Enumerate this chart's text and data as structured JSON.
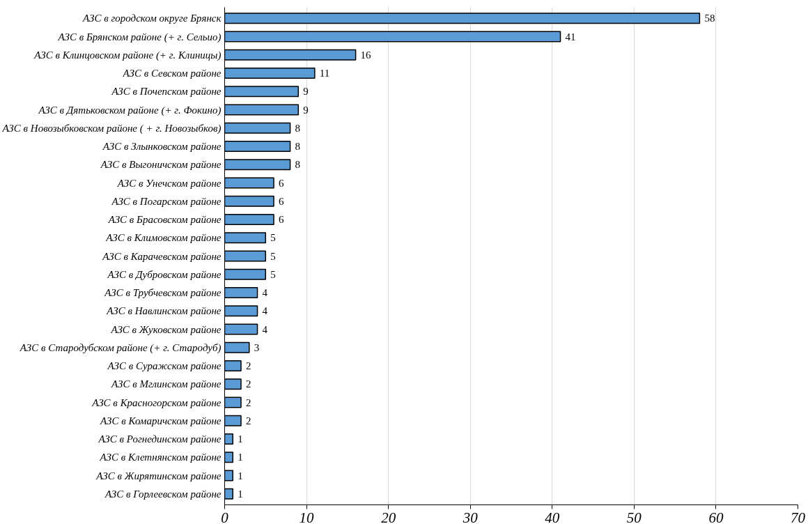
{
  "chart_data": {
    "type": "bar",
    "orientation": "horizontal",
    "categories": [
      "АЗС в городском округе Брянск",
      "АЗС в Брянском районе (+ г. Сельио)",
      "АЗС в Клинцовском районе (+ г. Клиницы)",
      "АЗС в Севском районе",
      "АЗС в Почепском районе",
      "АЗС в Дятьковском районе (+ г. Фокино)",
      "АЗС в Новозыбковском районе ( + г. Новозыбков)",
      "АЗС в Злынковском районе",
      "АЗС в Выгоничском районе",
      "АЗС в Унечском районе",
      "АЗС в Погарском районе",
      "АЗС в Брасовском районе",
      "АЗС в Климовском районе",
      "АЗС в Карачевском районе",
      "АЗС в Дубровском районе",
      "АЗС в Трубчевском районе",
      "АЗС в Навлинском районе",
      "АЗС в Жуковском районе",
      "АЗС в Стародубском районе (+ г. Стародуб)",
      "АЗС в Суражском районе",
      "АЗС в Мглинском районе",
      "АЗС в Красногорском районе",
      "АЗС в Комаричском районе",
      "АЗС в Рогнединском районе",
      "АЗС в Клетнянском районе",
      "АЗС в Жирятинском районе",
      "АЗС в Горлеевском районе"
    ],
    "values": [
      58,
      41,
      16,
      11,
      9,
      9,
      8,
      8,
      8,
      6,
      6,
      6,
      5,
      5,
      5,
      4,
      4,
      4,
      3,
      2,
      2,
      2,
      2,
      1,
      1,
      1,
      1
    ],
    "color": "#5b9bd5",
    "xlim": [
      0,
      70
    ],
    "xticks": [
      0,
      10,
      20,
      30,
      40,
      50,
      60,
      70
    ],
    "grid": "x",
    "data_labels": true
  }
}
